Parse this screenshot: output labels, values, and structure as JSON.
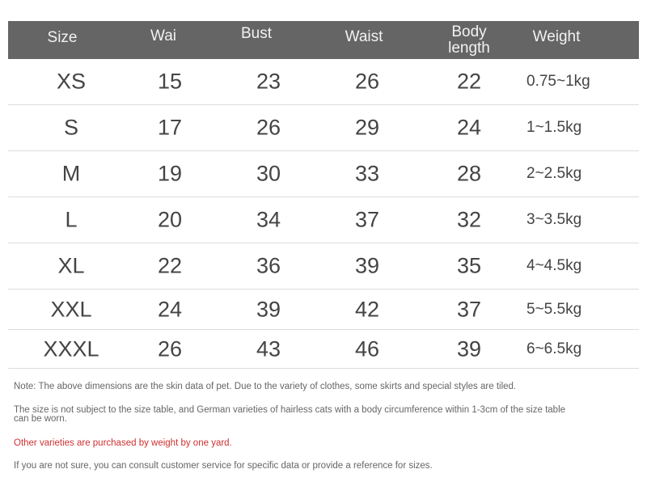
{
  "table": {
    "headers": [
      "Size",
      "Wai",
      "Bust",
      "Waist",
      "Body length",
      "Weight"
    ],
    "rows": [
      [
        "XS",
        "15",
        "23",
        "26",
        "22",
        "0.75~1kg"
      ],
      [
        "S",
        "17",
        "26",
        "29",
        "24",
        "1~1.5kg"
      ],
      [
        "M",
        "19",
        "30",
        "33",
        "28",
        "2~2.5kg"
      ],
      [
        "L",
        "20",
        "34",
        "37",
        "32",
        "3~3.5kg"
      ],
      [
        "XL",
        "22",
        "36",
        "39",
        "35",
        "4~4.5kg"
      ],
      [
        "XXL",
        "24",
        "39",
        "42",
        "37",
        "5~5.5kg"
      ],
      [
        "XXXL",
        "26",
        "43",
        "46",
        "39",
        "6~6.5kg"
      ]
    ]
  },
  "notes": [
    "Note: The above dimensions are the skin data of pet. Due to the variety of clothes, some skirts and special styles are tiled.",
    "The size is not subject to the size table, and German varieties of hairless cats with a body circumference within 1-3cm of the size table can be worn.",
    "Other varieties are purchased by weight by one yard.",
    "If you are not sure, you can consult customer service for specific data or provide a reference for sizes."
  ],
  "colors": {
    "header_bg": "#656565",
    "highlight_note": "#d03030"
  }
}
